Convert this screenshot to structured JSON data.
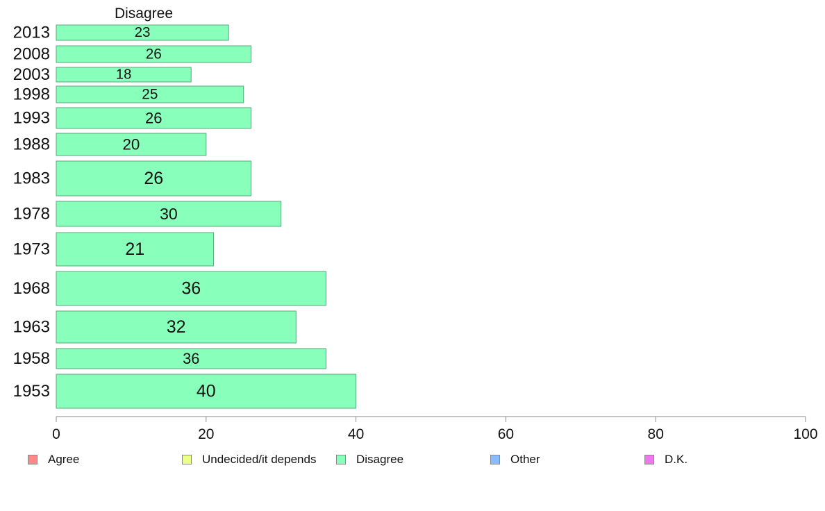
{
  "chart_data": {
    "type": "bar",
    "orientation": "horizontal",
    "title": "Disagree",
    "categories": [
      "2013",
      "2008",
      "2003",
      "1998",
      "1993",
      "1988",
      "1983",
      "1978",
      "1973",
      "1968",
      "1963",
      "1958",
      "1953"
    ],
    "series": [
      {
        "name": "Disagree",
        "values": [
          23,
          26,
          18,
          25,
          26,
          20,
          26,
          30,
          21,
          36,
          32,
          36,
          40
        ],
        "color": "#88ffbb"
      }
    ],
    "xlim": [
      0,
      100
    ],
    "xticks": [
      "0",
      "20",
      "40",
      "60",
      "80",
      "100"
    ],
    "grid": false,
    "bar_value_labels": true,
    "bar_widths_vary": true,
    "legend": {
      "placement": "bottom",
      "entries": [
        {
          "label": "Agree",
          "color": "#ff8888"
        },
        {
          "label": "Undecided/it depends",
          "color": "#eeff88"
        },
        {
          "label": "Disagree",
          "color": "#88ffbb"
        },
        {
          "label": "Other",
          "color": "#88bbff"
        },
        {
          "label": "D.K.",
          "color": "#ee77ee"
        }
      ]
    }
  }
}
